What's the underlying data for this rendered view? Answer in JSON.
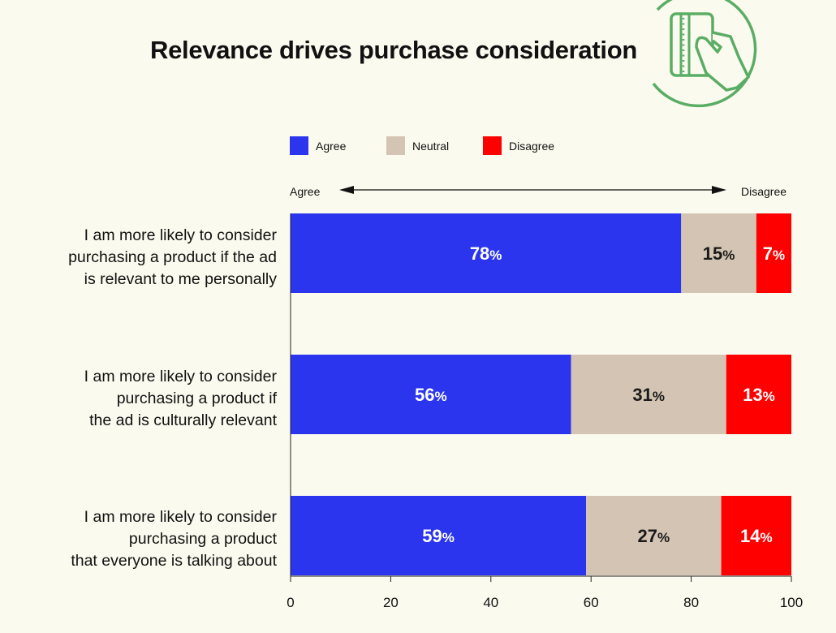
{
  "chart_data": {
    "type": "bar",
    "orientation": "horizontal",
    "stacked": true,
    "title": "Relevance drives purchase consideration",
    "categories": [
      [
        "I am more likely to consider",
        "purchasing a product if the ad",
        "is relevant to me personally"
      ],
      [
        "I am more likely to consider",
        "purchasing a product if",
        "the ad is culturally relevant"
      ],
      [
        "I am more likely to consider",
        "purchasing a product",
        "that everyone is talking about"
      ]
    ],
    "series": [
      {
        "name": "Agree",
        "color": "#2b35ee",
        "values": [
          78,
          56,
          59
        ]
      },
      {
        "name": "Neutral",
        "color": "#d3c4b3",
        "values": [
          15,
          31,
          27
        ]
      },
      {
        "name": "Disagree",
        "color": "#ff0000",
        "values": [
          7,
          13,
          14
        ]
      }
    ],
    "label_suffix": "%",
    "xlim": [
      0,
      100
    ],
    "xticks": [
      "0",
      "20",
      "40",
      "60",
      "80",
      "100"
    ],
    "direction_labels": {
      "left": "Agree",
      "right": "Disagree"
    },
    "legend_placement": "top-left",
    "grid": false
  },
  "icon": {
    "name": "hand-holding-card-icon",
    "color": "#5aad64"
  }
}
